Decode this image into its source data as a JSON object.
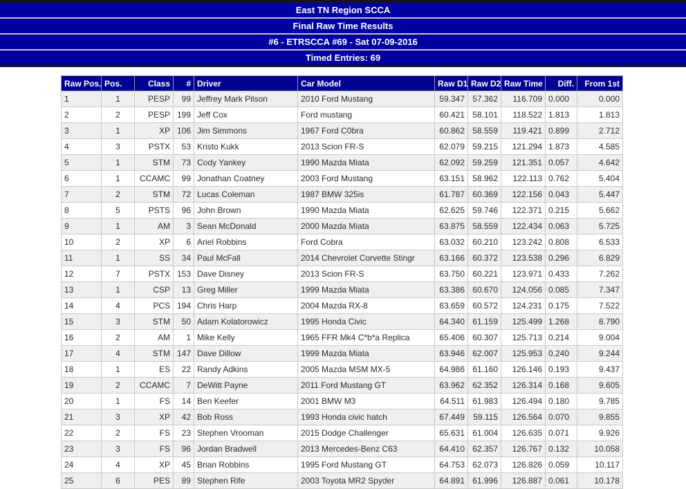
{
  "banner": {
    "lines": [
      "East TN Region SCCA",
      "Final Raw Time Results",
      "#6 - ETRSCCA #69 - Sat 07-09-2016",
      "Timed Entries: 69"
    ]
  },
  "colors": {
    "banner_bg": "#0202a0",
    "table_header_bg": "#020290",
    "header_text": "#ffffff",
    "row_stripe": "#efefef",
    "row_plain": "#ffffff",
    "body_text": "#2b2b2b",
    "separator": "#c3c3c3"
  },
  "table": {
    "columns": [
      {
        "key": "raw_pos",
        "label": "Raw Pos."
      },
      {
        "key": "pos",
        "label": "Pos."
      },
      {
        "key": "car_class",
        "label": "Class"
      },
      {
        "key": "num",
        "label": "#"
      },
      {
        "key": "driver",
        "label": "Driver"
      },
      {
        "key": "car_model",
        "label": "Car Model"
      },
      {
        "key": "raw_d1",
        "label": "Raw D1"
      },
      {
        "key": "raw_d2",
        "label": "Raw D2"
      },
      {
        "key": "raw_time",
        "label": "Raw Time"
      },
      {
        "key": "diff",
        "label": "Diff."
      },
      {
        "key": "from_1st",
        "label": "From 1st"
      }
    ],
    "rows": [
      {
        "raw_pos": "1",
        "pos": "1",
        "car_class": "PESP",
        "num": "99",
        "driver": "Jeffrey Mark Pilson",
        "car_model": "2010 Ford Mustang",
        "raw_d1": "59.347",
        "raw_d2": "57.362",
        "raw_time": "116.709",
        "diff": "0.000",
        "from_1st": "0.000"
      },
      {
        "raw_pos": "2",
        "pos": "2",
        "car_class": "PESP",
        "num": "199",
        "driver": "Jeff Cox",
        "car_model": "Ford mustang",
        "raw_d1": "60.421",
        "raw_d2": "58.101",
        "raw_time": "118.522",
        "diff": "1.813",
        "from_1st": "1.813"
      },
      {
        "raw_pos": "3",
        "pos": "1",
        "car_class": "XP",
        "num": "106",
        "driver": "Jim Simmons",
        "car_model": "1967 Ford C0bra",
        "raw_d1": "60.862",
        "raw_d2": "58.559",
        "raw_time": "119.421",
        "diff": "0.899",
        "from_1st": "2.712"
      },
      {
        "raw_pos": "4",
        "pos": "3",
        "car_class": "PSTX",
        "num": "53",
        "driver": "Kristo Kukk",
        "car_model": "2013 Scion FR-S",
        "raw_d1": "62.079",
        "raw_d2": "59.215",
        "raw_time": "121.294",
        "diff": "1.873",
        "from_1st": "4.585"
      },
      {
        "raw_pos": "5",
        "pos": "1",
        "car_class": "STM",
        "num": "73",
        "driver": "Cody Yankey",
        "car_model": "1990 Mazda Miata",
        "raw_d1": "62.092",
        "raw_d2": "59.259",
        "raw_time": "121.351",
        "diff": "0.057",
        "from_1st": "4.642"
      },
      {
        "raw_pos": "6",
        "pos": "1",
        "car_class": "CCAMC",
        "num": "99",
        "driver": "Jonathan Coatney",
        "car_model": "2003 Ford Mustang",
        "raw_d1": "63.151",
        "raw_d2": "58.962",
        "raw_time": "122.113",
        "diff": "0.762",
        "from_1st": "5.404"
      },
      {
        "raw_pos": "7",
        "pos": "2",
        "car_class": "STM",
        "num": "72",
        "driver": "Lucas Coleman",
        "car_model": "1987 BMW 325is",
        "raw_d1": "61.787",
        "raw_d2": "60.369",
        "raw_time": "122.156",
        "diff": "0.043",
        "from_1st": "5.447"
      },
      {
        "raw_pos": "8",
        "pos": "5",
        "car_class": "PSTS",
        "num": "96",
        "driver": "John Brown",
        "car_model": "1990 Mazda Miata",
        "raw_d1": "62.625",
        "raw_d2": "59.746",
        "raw_time": "122.371",
        "diff": "0.215",
        "from_1st": "5.662"
      },
      {
        "raw_pos": "9",
        "pos": "1",
        "car_class": "AM",
        "num": "3",
        "driver": "Sean McDonald",
        "car_model": "2000 Mazda Miata",
        "raw_d1": "63.875",
        "raw_d2": "58.559",
        "raw_time": "122.434",
        "diff": "0.063",
        "from_1st": "5.725"
      },
      {
        "raw_pos": "10",
        "pos": "2",
        "car_class": "XP",
        "num": "6",
        "driver": "Ariel Robbins",
        "car_model": "Ford Cobra",
        "raw_d1": "63.032",
        "raw_d2": "60.210",
        "raw_time": "123.242",
        "diff": "0.808",
        "from_1st": "6.533"
      },
      {
        "raw_pos": "11",
        "pos": "1",
        "car_class": "SS",
        "num": "34",
        "driver": "Paul McFall",
        "car_model": "2014 Chevrolet Corvette Stingr",
        "raw_d1": "63.166",
        "raw_d2": "60.372",
        "raw_time": "123.538",
        "diff": "0.296",
        "from_1st": "6.829"
      },
      {
        "raw_pos": "12",
        "pos": "7",
        "car_class": "PSTX",
        "num": "153",
        "driver": "Dave Disney",
        "car_model": "2013 Scion FR-S",
        "raw_d1": "63.750",
        "raw_d2": "60.221",
        "raw_time": "123.971",
        "diff": "0.433",
        "from_1st": "7.262"
      },
      {
        "raw_pos": "13",
        "pos": "1",
        "car_class": "CSP",
        "num": "13",
        "driver": "Greg Miller",
        "car_model": "1999 Mazda Miata",
        "raw_d1": "63.386",
        "raw_d2": "60.670",
        "raw_time": "124.056",
        "diff": "0.085",
        "from_1st": "7.347"
      },
      {
        "raw_pos": "14",
        "pos": "4",
        "car_class": "PCS",
        "num": "194",
        "driver": "Chris Harp",
        "car_model": "2004 Mazda RX-8",
        "raw_d1": "63.659",
        "raw_d2": "60.572",
        "raw_time": "124.231",
        "diff": "0.175",
        "from_1st": "7.522"
      },
      {
        "raw_pos": "15",
        "pos": "3",
        "car_class": "STM",
        "num": "50",
        "driver": "Adam Kolatorowicz",
        "car_model": "1995 Honda Civic",
        "raw_d1": "64.340",
        "raw_d2": "61.159",
        "raw_time": "125.499",
        "diff": "1.268",
        "from_1st": "8.790"
      },
      {
        "raw_pos": "16",
        "pos": "2",
        "car_class": "AM",
        "num": "1",
        "driver": "Mike Kelly",
        "car_model": "1965 FFR Mk4 C*b*a Replica",
        "raw_d1": "65.406",
        "raw_d2": "60.307",
        "raw_time": "125.713",
        "diff": "0.214",
        "from_1st": "9.004"
      },
      {
        "raw_pos": "17",
        "pos": "4",
        "car_class": "STM",
        "num": "147",
        "driver": "Dave Dillow",
        "car_model": "1999 Mazda Miata",
        "raw_d1": "63.946",
        "raw_d2": "62.007",
        "raw_time": "125.953",
        "diff": "0.240",
        "from_1st": "9.244"
      },
      {
        "raw_pos": "18",
        "pos": "1",
        "car_class": "ES",
        "num": "22",
        "driver": "Randy Adkins",
        "car_model": "2005 Mazda MSM MX-5",
        "raw_d1": "64.986",
        "raw_d2": "61.160",
        "raw_time": "126.146",
        "diff": "0.193",
        "from_1st": "9.437"
      },
      {
        "raw_pos": "19",
        "pos": "2",
        "car_class": "CCAMC",
        "num": "7",
        "driver": "DeWitt Payne",
        "car_model": "2011 Ford Mustang GT",
        "raw_d1": "63.962",
        "raw_d2": "62.352",
        "raw_time": "126.314",
        "diff": "0.168",
        "from_1st": "9.605"
      },
      {
        "raw_pos": "20",
        "pos": "1",
        "car_class": "FS",
        "num": "14",
        "driver": "Ben Keefer",
        "car_model": "2001 BMW M3",
        "raw_d1": "64.511",
        "raw_d2": "61.983",
        "raw_time": "126.494",
        "diff": "0.180",
        "from_1st": "9.785"
      },
      {
        "raw_pos": "21",
        "pos": "3",
        "car_class": "XP",
        "num": "42",
        "driver": "Bob Ross",
        "car_model": "1993 Honda civic hatch",
        "raw_d1": "67.449",
        "raw_d2": "59.115",
        "raw_time": "126.564",
        "diff": "0.070",
        "from_1st": "9.855"
      },
      {
        "raw_pos": "22",
        "pos": "2",
        "car_class": "FS",
        "num": "23",
        "driver": "Stephen Vrooman",
        "car_model": "2015 Dodge Challenger",
        "raw_d1": "65.631",
        "raw_d2": "61.004",
        "raw_time": "126.635",
        "diff": "0.071",
        "from_1st": "9.926"
      },
      {
        "raw_pos": "23",
        "pos": "3",
        "car_class": "FS",
        "num": "96",
        "driver": "Jordan Bradwell",
        "car_model": "2013 Mercedes-Benz C63",
        "raw_d1": "64.410",
        "raw_d2": "62.357",
        "raw_time": "126.767",
        "diff": "0.132",
        "from_1st": "10.058"
      },
      {
        "raw_pos": "24",
        "pos": "4",
        "car_class": "XP",
        "num": "45",
        "driver": "Brian Robbins",
        "car_model": "1995 Ford Mustang GT",
        "raw_d1": "64.753",
        "raw_d2": "62.073",
        "raw_time": "126.826",
        "diff": "0.059",
        "from_1st": "10.117"
      },
      {
        "raw_pos": "25",
        "pos": "6",
        "car_class": "PES",
        "num": "89",
        "driver": "Stephen Rife",
        "car_model": "2003 Toyota MR2 Spyder",
        "raw_d1": "64.891",
        "raw_d2": "61.996",
        "raw_time": "126.887",
        "diff": "0.061",
        "from_1st": "10.178"
      }
    ]
  }
}
